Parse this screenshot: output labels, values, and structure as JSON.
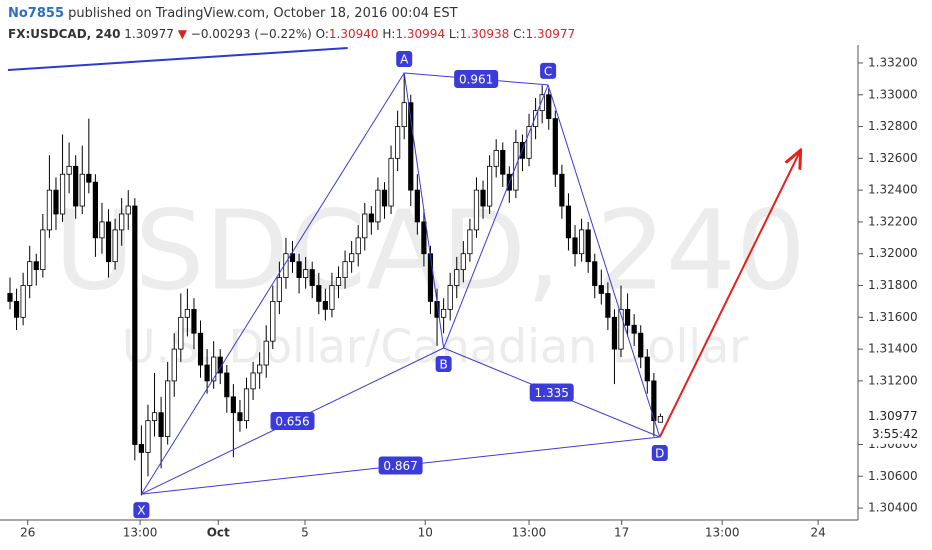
{
  "header": {
    "author": "No7855",
    "published": "published on TradingView.com, October 18, 2016 00:04 EST",
    "symbol": "FX:USDCAD, 240",
    "last": "1.30977",
    "arrow": "▼",
    "change": "−0.00293 (−0.22%)",
    "ohlc": [
      {
        "key": "O:",
        "value": "1.30940"
      },
      {
        "key": "H:",
        "value": "1.30994"
      },
      {
        "key": "L:",
        "value": "1.30938"
      },
      {
        "key": "C:",
        "value": "1.30977"
      }
    ]
  },
  "chart_data": {
    "type": "candlestick",
    "watermark": "USDCAD, 240",
    "watermark_sub": "U.S. Dollar/Canadian Dollar",
    "up_color": "#ffffff",
    "down_color": "#000000",
    "grid": false,
    "xlim": [
      -1.52,
      129.07
    ],
    "xticks": [
      {
        "value": 2.7,
        "label": "26"
      },
      {
        "value": 19.8,
        "label": "13:00"
      },
      {
        "value": 31.7,
        "label": "Oct"
      },
      {
        "value": 44.9,
        "label": "5"
      },
      {
        "value": 63.2,
        "label": "10"
      },
      {
        "value": 79,
        "label": "13:00"
      },
      {
        "value": 93.1,
        "label": "17"
      },
      {
        "value": 108.4,
        "label": "13:00"
      },
      {
        "value": 123,
        "label": "24"
      }
    ],
    "ylim": [
      1.30325,
      1.33313
    ],
    "yticks": [
      {
        "value": 1.304,
        "label": "1.30400"
      },
      {
        "value": 1.306,
        "label": "1.30600"
      },
      {
        "value": 1.308,
        "label": "1.30800"
      },
      {
        "value": 1.312,
        "label": "1.31200"
      },
      {
        "value": 1.314,
        "label": "1.31400"
      },
      {
        "value": 1.316,
        "label": "1.31600"
      },
      {
        "value": 1.318,
        "label": "1.31800"
      },
      {
        "value": 1.32,
        "label": "1.32000"
      },
      {
        "value": 1.322,
        "label": "1.32200"
      },
      {
        "value": 1.324,
        "label": "1.32400"
      },
      {
        "value": 1.326,
        "label": "1.32600"
      },
      {
        "value": 1.328,
        "label": "1.32800"
      },
      {
        "value": 1.33,
        "label": "1.33000"
      },
      {
        "value": 1.332,
        "label": "1.33200"
      }
    ],
    "current_price": {
      "value": 1.30977,
      "label": "1.30977",
      "countdown": "3:55:42"
    },
    "candles": [
      [
        1.3175,
        1.3185,
        1.3165,
        1.317
      ],
      [
        1.317,
        1.3178,
        1.3152,
        1.316
      ],
      [
        1.316,
        1.3188,
        1.3155,
        1.318
      ],
      [
        1.318,
        1.3205,
        1.3172,
        1.3195
      ],
      [
        1.3195,
        1.32,
        1.318,
        1.319
      ],
      [
        1.319,
        1.3225,
        1.3185,
        1.3215
      ],
      [
        1.3215,
        1.3262,
        1.321,
        1.324
      ],
      [
        1.324,
        1.3248,
        1.3215,
        1.3225
      ],
      [
        1.3225,
        1.3275,
        1.322,
        1.325
      ],
      [
        1.325,
        1.327,
        1.3238,
        1.3255
      ],
      [
        1.3255,
        1.3262,
        1.3222,
        1.323
      ],
      [
        1.323,
        1.3268,
        1.3225,
        1.325
      ],
      [
        1.325,
        1.3285,
        1.3238,
        1.3245
      ],
      [
        1.3245,
        1.325,
        1.3198,
        1.321
      ],
      [
        1.321,
        1.3232,
        1.32,
        1.322
      ],
      [
        1.322,
        1.3228,
        1.3185,
        1.3195
      ],
      [
        1.3195,
        1.3222,
        1.319,
        1.3215
      ],
      [
        1.3215,
        1.3235,
        1.3205,
        1.3225
      ],
      [
        1.3225,
        1.324,
        1.3215,
        1.323
      ],
      [
        1.323,
        1.3235,
        1.307,
        1.308
      ],
      [
        1.308,
        1.3092,
        1.3048,
        1.3075
      ],
      [
        1.3075,
        1.3105,
        1.306,
        1.3095
      ],
      [
        1.3095,
        1.3125,
        1.3085,
        1.31
      ],
      [
        1.31,
        1.311,
        1.3065,
        1.3085
      ],
      [
        1.3085,
        1.3132,
        1.308,
        1.312
      ],
      [
        1.312,
        1.315,
        1.311,
        1.314
      ],
      [
        1.314,
        1.3175,
        1.3132,
        1.316
      ],
      [
        1.316,
        1.3178,
        1.3148,
        1.3165
      ],
      [
        1.3165,
        1.3172,
        1.314,
        1.315
      ],
      [
        1.315,
        1.3158,
        1.3122,
        1.313
      ],
      [
        1.313,
        1.314,
        1.3112,
        1.312
      ],
      [
        1.312,
        1.3145,
        1.3115,
        1.3135
      ],
      [
        1.3135,
        1.314,
        1.3118,
        1.3125
      ],
      [
        1.3125,
        1.313,
        1.31,
        1.311
      ],
      [
        1.311,
        1.3118,
        1.3072,
        1.31
      ],
      [
        1.31,
        1.3108,
        1.3088,
        1.3095
      ],
      [
        1.3095,
        1.3122,
        1.309,
        1.3115
      ],
      [
        1.3115,
        1.3132,
        1.3108,
        1.3125
      ],
      [
        1.3125,
        1.3138,
        1.3115,
        1.313
      ],
      [
        1.313,
        1.3155,
        1.3122,
        1.3145
      ],
      [
        1.3145,
        1.318,
        1.314,
        1.317
      ],
      [
        1.317,
        1.3195,
        1.3162,
        1.3185
      ],
      [
        1.3185,
        1.321,
        1.3178,
        1.32
      ],
      [
        1.32,
        1.3208,
        1.3188,
        1.3195
      ],
      [
        1.3195,
        1.32,
        1.3175,
        1.3185
      ],
      [
        1.3185,
        1.3198,
        1.3178,
        1.319
      ],
      [
        1.319,
        1.3195,
        1.3172,
        1.318
      ],
      [
        1.318,
        1.3188,
        1.3162,
        1.317
      ],
      [
        1.317,
        1.3178,
        1.3158,
        1.3165
      ],
      [
        1.3165,
        1.3188,
        1.316,
        1.318
      ],
      [
        1.318,
        1.3192,
        1.3172,
        1.3185
      ],
      [
        1.3185,
        1.3202,
        1.3178,
        1.3195
      ],
      [
        1.3195,
        1.3208,
        1.3188,
        1.32
      ],
      [
        1.32,
        1.3218,
        1.3192,
        1.321
      ],
      [
        1.321,
        1.3232,
        1.3202,
        1.3225
      ],
      [
        1.3225,
        1.323,
        1.3212,
        1.322
      ],
      [
        1.322,
        1.3248,
        1.3215,
        1.324
      ],
      [
        1.324,
        1.3245,
        1.3222,
        1.323
      ],
      [
        1.323,
        1.3268,
        1.3225,
        1.326
      ],
      [
        1.326,
        1.329,
        1.3252,
        1.328
      ],
      [
        1.328,
        1.3314,
        1.3272,
        1.3295
      ],
      [
        1.3295,
        1.33,
        1.323,
        1.324
      ],
      [
        1.324,
        1.325,
        1.3212,
        1.322
      ],
      [
        1.322,
        1.3228,
        1.3192,
        1.32
      ],
      [
        1.32,
        1.3205,
        1.3162,
        1.317
      ],
      [
        1.317,
        1.3178,
        1.3142,
        1.316
      ],
      [
        1.316,
        1.3172,
        1.315,
        1.3165
      ],
      [
        1.3165,
        1.3188,
        1.3158,
        1.318
      ],
      [
        1.318,
        1.3198,
        1.3172,
        1.319
      ],
      [
        1.319,
        1.3208,
        1.3182,
        1.32
      ],
      [
        1.32,
        1.3222,
        1.3195,
        1.3215
      ],
      [
        1.3215,
        1.3248,
        1.321,
        1.324
      ],
      [
        1.324,
        1.3246,
        1.3222,
        1.323
      ],
      [
        1.323,
        1.3262,
        1.3225,
        1.3255
      ],
      [
        1.3255,
        1.3272,
        1.3248,
        1.3265
      ],
      [
        1.3265,
        1.327,
        1.3242,
        1.325
      ],
      [
        1.325,
        1.3255,
        1.3232,
        1.324
      ],
      [
        1.324,
        1.3278,
        1.3235,
        1.327
      ],
      [
        1.327,
        1.3275,
        1.3252,
        1.326
      ],
      [
        1.326,
        1.3288,
        1.3255,
        1.328
      ],
      [
        1.328,
        1.3298,
        1.3272,
        1.329
      ],
      [
        1.329,
        1.3306,
        1.3282,
        1.33
      ],
      [
        1.33,
        1.3304,
        1.3278,
        1.3285
      ],
      [
        1.3285,
        1.329,
        1.3242,
        1.325
      ],
      [
        1.325,
        1.3256,
        1.3222,
        1.323
      ],
      [
        1.323,
        1.3238,
        1.3202,
        1.321
      ],
      [
        1.321,
        1.3218,
        1.3192,
        1.32
      ],
      [
        1.32,
        1.3222,
        1.3195,
        1.3215
      ],
      [
        1.3215,
        1.322,
        1.3188,
        1.3195
      ],
      [
        1.3195,
        1.32,
        1.3172,
        1.318
      ],
      [
        1.318,
        1.319,
        1.3168,
        1.3175
      ],
      [
        1.3175,
        1.3182,
        1.3152,
        1.316
      ],
      [
        1.316,
        1.3165,
        1.3118,
        1.314
      ],
      [
        1.314,
        1.318,
        1.3135,
        1.3165
      ],
      [
        1.3165,
        1.3175,
        1.3148,
        1.3155
      ],
      [
        1.3155,
        1.3162,
        1.3142,
        1.315
      ],
      [
        1.315,
        1.3155,
        1.3128,
        1.3135
      ],
      [
        1.3135,
        1.314,
        1.3112,
        1.312
      ],
      [
        1.312,
        1.3125,
        1.3085,
        1.3095
      ],
      [
        1.3094,
        1.30994,
        1.30938,
        1.30977
      ]
    ],
    "pattern": {
      "color": "#3b3bd9",
      "points": [
        {
          "label": "X",
          "index": 20,
          "price": 1.30488
        },
        {
          "label": "A",
          "index": 60,
          "price": 1.33137
        },
        {
          "label": "B",
          "index": 66,
          "price": 1.31407
        },
        {
          "label": "C",
          "index": 81.9,
          "price": 1.33062
        },
        {
          "label": "D",
          "index": 98.9,
          "price": 1.30847
        }
      ],
      "ratios": [
        0.656,
        0.961,
        1.335,
        0.867
      ]
    },
    "arrow": {
      "color": "#e8201c",
      "index": [
        98.9,
        120.2
      ],
      "price": [
        1.30847,
        1.3264
      ]
    },
    "trendline": {
      "color": "#2b3bd0",
      "index": [
        -0.3,
        51.4
      ],
      "price": [
        1.33156,
        1.33294
      ]
    }
  }
}
